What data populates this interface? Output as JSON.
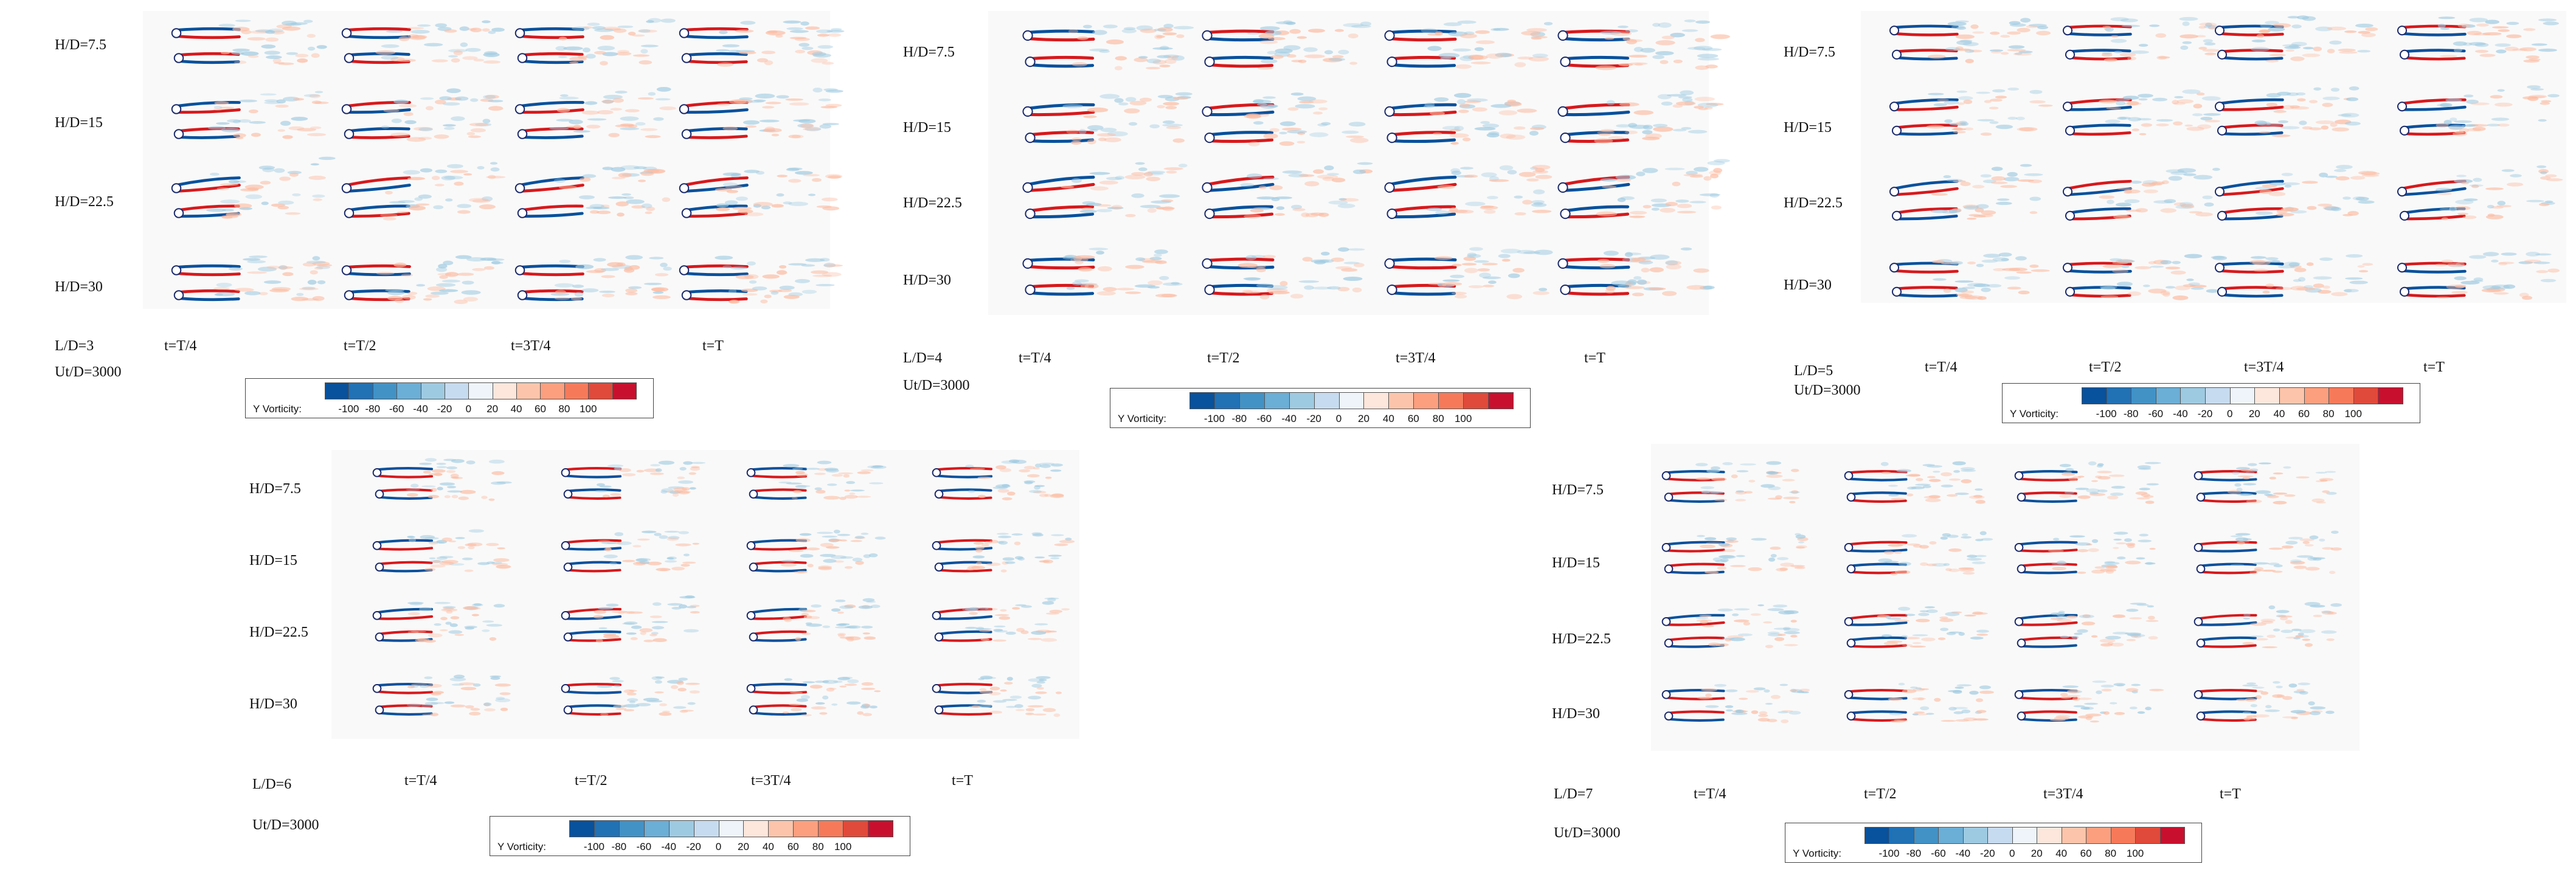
{
  "legend": {
    "title": "Y Vorticity:",
    "ticks": [
      "-100",
      "-80",
      "-60",
      "-40",
      "-20",
      "0",
      "20",
      "40",
      "60",
      "80",
      "100"
    ],
    "colors": [
      "#08519c",
      "#2171b5",
      "#4292c6",
      "#6baed6",
      "#9ecae1",
      "#c6dbef",
      "#eef4fa",
      "#fde6dc",
      "#fcc5ab",
      "#fc9f7f",
      "#f67a5a",
      "#e04a3a",
      "#c8102e"
    ]
  },
  "panels": [
    {
      "id": "L3",
      "ld": "L/D=3",
      "ut": "Ut/D=3000",
      "rows": [
        "H/D=7.5",
        "H/D=15",
        "H/D=22.5",
        "H/D=30"
      ],
      "times": [
        "t=T/4",
        "t=T/2",
        "t=3T/4",
        "t=T"
      ]
    },
    {
      "id": "L4",
      "ld": "L/D=4",
      "ut": "Ut/D=3000",
      "rows": [
        "H/D=7.5",
        "H/D=15",
        "H/D=22.5",
        "H/D=30"
      ],
      "times": [
        "t=T/4",
        "t=T/2",
        "t=3T/4",
        "t=T"
      ]
    },
    {
      "id": "L5",
      "ld": "L/D=5",
      "ut": "Ut/D=3000",
      "rows": [
        "H/D=7.5",
        "H/D=15",
        "H/D=22.5",
        "H/D=30"
      ],
      "times": [
        "t=T/4",
        "t=T/2",
        "t=3T/4",
        "t=T"
      ]
    },
    {
      "id": "L6",
      "ld": "L/D=6",
      "ut": "Ut/D=3000",
      "rows": [
        "H/D=7.5",
        "H/D=15",
        "H/D=22.5",
        "H/D=30"
      ],
      "times": [
        "t=T/4",
        "t=T/2",
        "t=3T/4",
        "t=T"
      ]
    },
    {
      "id": "L7",
      "ld": "L/D=7",
      "ut": "Ut/D=3000",
      "rows": [
        "H/D=7.5",
        "H/D=15",
        "H/D=22.5",
        "H/D=30"
      ],
      "times": [
        "t=T/4",
        "t=T/2",
        "t=3T/4",
        "t=T"
      ]
    }
  ]
}
